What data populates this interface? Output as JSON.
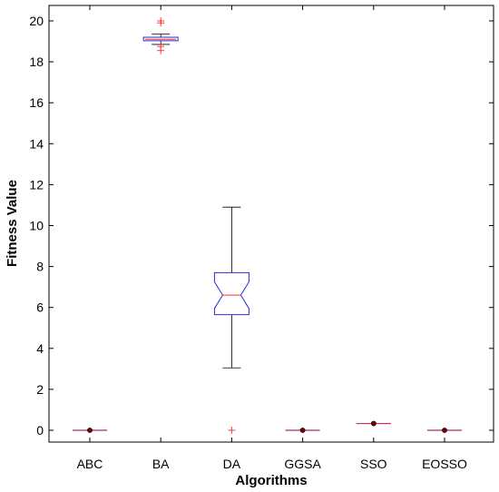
{
  "chart_data": {
    "type": "boxplot",
    "xlabel": "Algorithms",
    "ylabel": "Fitness Value",
    "categories": [
      "ABC",
      "BA",
      "DA",
      "GGSA",
      "SSO",
      "EOSSO"
    ],
    "yticks": [
      0,
      2,
      4,
      6,
      8,
      10,
      12,
      14,
      16,
      18,
      20
    ],
    "ylim": [
      -0.7,
      21
    ],
    "grid": false,
    "notched": true,
    "boxes": [
      {
        "name": "ABC",
        "whisker_low": 0,
        "q1": 0,
        "median": 0,
        "q3": 0,
        "whisker_high": 0,
        "mean_dot": 0,
        "outliers": []
      },
      {
        "name": "BA",
        "whisker_low": 18.85,
        "q1": 19.03,
        "median": 19.1,
        "q3": 19.2,
        "whisker_high": 19.35,
        "outliers": [
          18.55,
          18.75,
          19.9,
          20.0
        ]
      },
      {
        "name": "DA",
        "whisker_low": 3.05,
        "q1": 5.65,
        "median": 6.6,
        "q3": 7.7,
        "whisker_high": 10.9,
        "notch_low": 5.95,
        "notch_high": 7.25,
        "outliers": [
          0.0
        ]
      },
      {
        "name": "GGSA",
        "whisker_low": 0,
        "q1": 0,
        "median": 0,
        "q3": 0,
        "whisker_high": 0,
        "mean_dot": 0,
        "outliers": []
      },
      {
        "name": "SSO",
        "whisker_low": 0.33,
        "q1": 0.33,
        "median": 0.33,
        "q3": 0.33,
        "whisker_high": 0.33,
        "mean_dot": 0.33,
        "outliers": []
      },
      {
        "name": "EOSSO",
        "whisker_low": 0,
        "q1": 0,
        "median": 0,
        "q3": 0,
        "whisker_high": 0,
        "mean_dot": 0,
        "outliers": []
      }
    ],
    "colors": {
      "box": "#2b2bd6",
      "median": "#ff2a2a",
      "whisker": "#000000",
      "outlier": "#ff3b3b",
      "dot": "#7a0000"
    }
  }
}
